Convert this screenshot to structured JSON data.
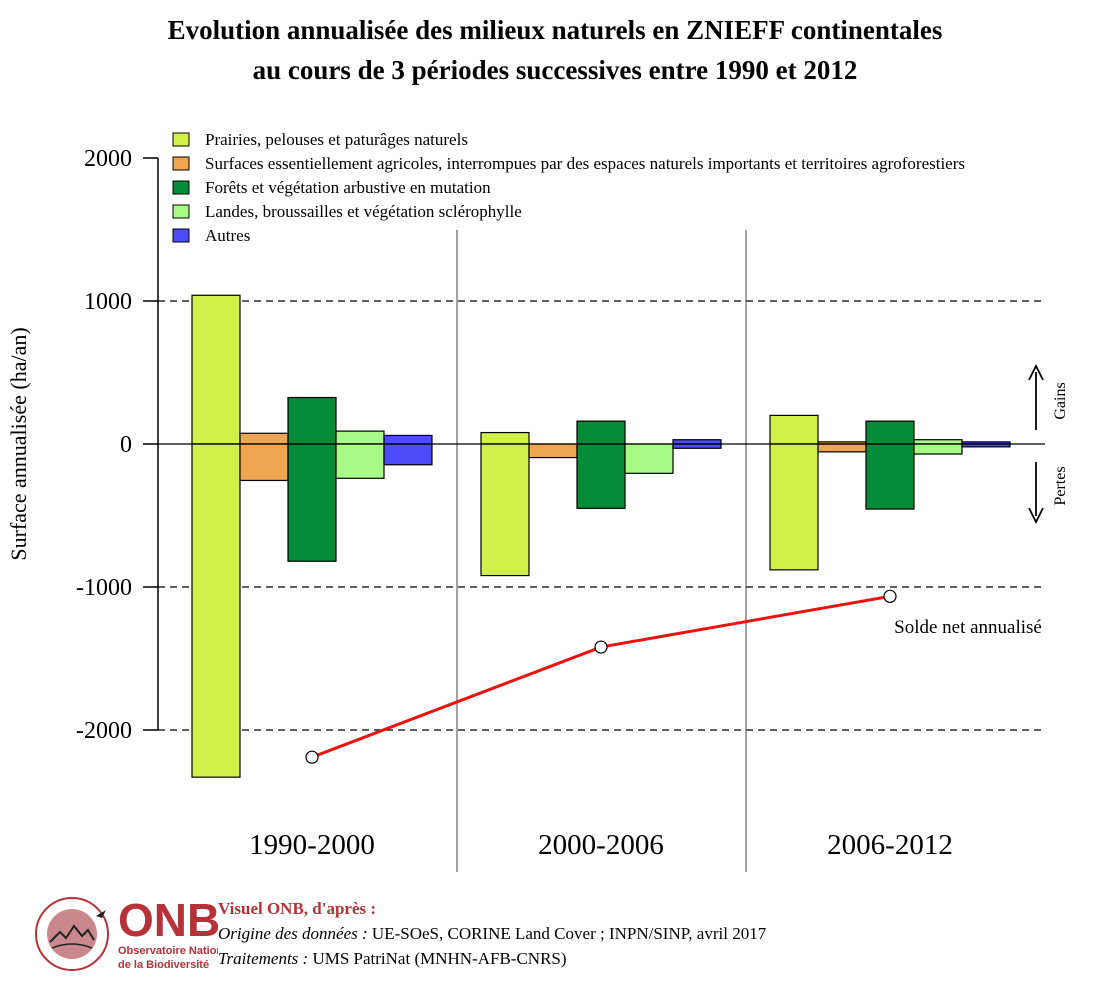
{
  "title": {
    "line1": "Evolution annualisée des milieux naturels en ZNIEFF continentales",
    "line2": "au cours de 3 périodes successives entre 1990 et 2012"
  },
  "chart_data": {
    "type": "bar",
    "ylabel": "Surface annualisée (ha/an)",
    "ylim": [
      -2300,
      2000
    ],
    "yticks": [
      2000,
      1000,
      0,
      -1000,
      -2000
    ],
    "ytick_labels": [
      "2000",
      "1000",
      "0",
      "-1000",
      "-2000"
    ],
    "grid_dashed_at": [
      1000,
      -1000,
      -2000
    ],
    "legend_position": "top-left",
    "categories": [
      "1990-2000",
      "2000-2006",
      "2006-2012"
    ],
    "series": [
      {
        "name": "Prairies, pelouses et paturâges naturels",
        "color": "#d2f04a",
        "gains": [
          1040,
          80,
          200
        ],
        "losses": [
          -2330,
          -920,
          -880
        ]
      },
      {
        "name": "Surfaces essentiellement agricoles, interrompues par des espaces naturels importants et territoires agroforestiers",
        "color": "#f0a650",
        "gains": [
          75,
          0,
          15
        ],
        "losses": [
          -255,
          -95,
          -55
        ]
      },
      {
        "name": "Forêts et végétation arbustive en mutation",
        "color": "#068c38",
        "gains": [
          325,
          160,
          160
        ],
        "losses": [
          -820,
          -450,
          -455
        ]
      },
      {
        "name": "Landes, broussailles et végétation sclérophylle",
        "color": "#a8fb86",
        "gains": [
          90,
          0,
          30
        ],
        "losses": [
          -240,
          -205,
          -70
        ]
      },
      {
        "name": "Autres",
        "color": "#4c4cfa",
        "gains": [
          60,
          30,
          15
        ],
        "losses": [
          -145,
          -30,
          -20
        ]
      }
    ],
    "net_balance": {
      "name": "Solde net annualisé",
      "color": "#ee1111",
      "values": [
        -2190,
        -1420,
        -1065
      ]
    },
    "annotations": {
      "gains": "Gains",
      "pertes": "Pertes"
    }
  },
  "footer": {
    "logo_text": "ONB",
    "logo_sub1": "Observatoire National",
    "logo_sub2": "de la Biodiversité",
    "logo_ring": "CONNAISSANCE · OBSERVATOIRES",
    "heading": "Visuel ONB, d'après :",
    "origin_label": "Origine des données :",
    "origin_value": " UE-SOeS, CORINE Land Cover ; INPN/SINP, avril 2017",
    "treat_label": "Traitements :",
    "treat_value": " UMS PatriNat (MNHN-AFB-CNRS)",
    "brand_color": "#b5323a"
  }
}
